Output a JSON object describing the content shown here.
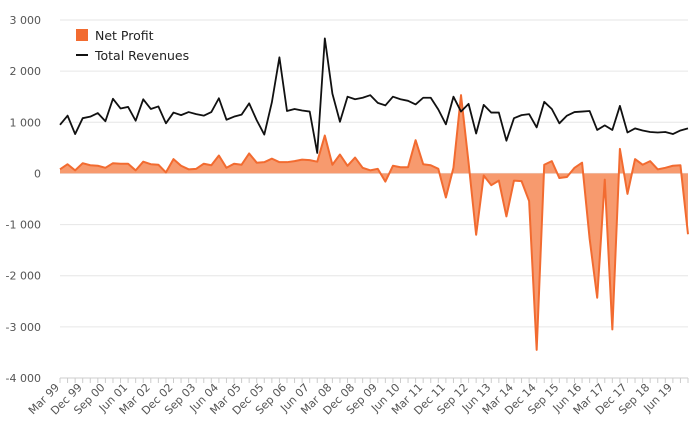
{
  "chart_data": {
    "type": "area",
    "title": "",
    "xlabel": "",
    "ylabel": "",
    "ylim": [
      -4000,
      3000
    ],
    "yticks": [
      3000,
      2000,
      1000,
      0,
      -1000,
      -2000,
      -3000,
      -4000
    ],
    "ytick_labels": [
      "3 000",
      "2 000",
      "1 000",
      "0",
      "-1 000",
      "-2 000",
      "-3 000",
      "-4 000"
    ],
    "xtick_labels": [
      "Mar 99",
      "Dec 99",
      "Sep 00",
      "Jun 01",
      "Mar 02",
      "Dec 02",
      "Sep 03",
      "Jun 04",
      "Mar 05",
      "Dec 05",
      "Sep 06",
      "Jun 07",
      "Mar 08",
      "Dec 08",
      "Sep 09",
      "Jun 10",
      "Mar 11",
      "Dec 11",
      "Sep 12",
      "Jun 13",
      "Mar 14",
      "Dec 14",
      "Sep 15",
      "Jun 16",
      "Mar 17",
      "Dec 17",
      "Sep 18",
      "Jun 19"
    ],
    "grid": true,
    "legend_position": "top-left",
    "colors": {
      "net_profit": "#f26b30",
      "net_profit_fill": "#f79a6e",
      "total_revenues": "#111111"
    },
    "x": [
      "Mar 99",
      "Jun 99",
      "Sep 99",
      "Dec 99",
      "Mar 00",
      "Jun 00",
      "Sep 00",
      "Dec 00",
      "Mar 01",
      "Jun 01",
      "Sep 01",
      "Dec 01",
      "Mar 02",
      "Jun 02",
      "Sep 02",
      "Dec 02",
      "Mar 03",
      "Jun 03",
      "Sep 03",
      "Dec 03",
      "Mar 04",
      "Jun 04",
      "Sep 04",
      "Dec 04",
      "Mar 05",
      "Jun 05",
      "Sep 05",
      "Dec 05",
      "Mar 06",
      "Jun 06",
      "Sep 06",
      "Dec 06",
      "Mar 07",
      "Jun 07",
      "Sep 07",
      "Dec 07",
      "Mar 08",
      "Jun 08",
      "Sep 08",
      "Dec 08",
      "Mar 09",
      "Jun 09",
      "Sep 09",
      "Dec 09",
      "Mar 10",
      "Jun 10",
      "Sep 10",
      "Dec 10",
      "Mar 11",
      "Jun 11",
      "Sep 11",
      "Dec 11",
      "Mar 12",
      "Jun 12",
      "Sep 12",
      "Dec 12",
      "Mar 13",
      "Jun 13",
      "Sep 13",
      "Dec 13",
      "Mar 14",
      "Jun 14",
      "Sep 14",
      "Dec 14",
      "Mar 15",
      "Jun 15",
      "Sep 15",
      "Dec 15",
      "Mar 16",
      "Jun 16",
      "Sep 16",
      "Dec 16",
      "Mar 17",
      "Jun 17",
      "Sep 17",
      "Dec 17",
      "Mar 18",
      "Jun 18",
      "Sep 18",
      "Dec 18",
      "Mar 19",
      "Jun 19",
      "Sep 19",
      "Dec 19"
    ],
    "series": [
      {
        "name": "Net Profit",
        "values": [
          80,
          180,
          60,
          200,
          160,
          150,
          110,
          200,
          190,
          190,
          60,
          230,
          180,
          170,
          20,
          280,
          150,
          80,
          90,
          190,
          160,
          350,
          110,
          190,
          170,
          390,
          210,
          220,
          290,
          220,
          220,
          240,
          270,
          260,
          230,
          740,
          170,
          370,
          150,
          310,
          110,
          60,
          90,
          -160,
          150,
          120,
          120,
          650,
          180,
          160,
          90,
          -470,
          110,
          1530,
          210,
          -1200,
          -40,
          -230,
          -140,
          -840,
          -140,
          -150,
          -540,
          -3450,
          170,
          240,
          -90,
          -70,
          110,
          210,
          -1280,
          -2430,
          -120,
          -3050,
          480,
          -400,
          280,
          170,
          240,
          80,
          110,
          150,
          160,
          -1190
        ]
      },
      {
        "name": "Total Revenues",
        "values": [
          950,
          1130,
          770,
          1080,
          1110,
          1180,
          1020,
          1460,
          1270,
          1300,
          1030,
          1450,
          1260,
          1310,
          980,
          1190,
          1140,
          1200,
          1160,
          1130,
          1200,
          1470,
          1050,
          1110,
          1150,
          1370,
          1040,
          760,
          1390,
          2270,
          1220,
          1260,
          1230,
          1210,
          400,
          2640,
          1560,
          1010,
          1500,
          1450,
          1480,
          1530,
          1380,
          1330,
          1500,
          1450,
          1420,
          1350,
          1480,
          1480,
          1250,
          960,
          1500,
          1210,
          1360,
          780,
          1340,
          1190,
          1190,
          640,
          1080,
          1140,
          1160,
          900,
          1400,
          1260,
          980,
          1130,
          1200,
          1210,
          1220,
          850,
          940,
          850,
          1320,
          800,
          880,
          840,
          810,
          800,
          810,
          770,
          840,
          880
        ]
      }
    ]
  }
}
